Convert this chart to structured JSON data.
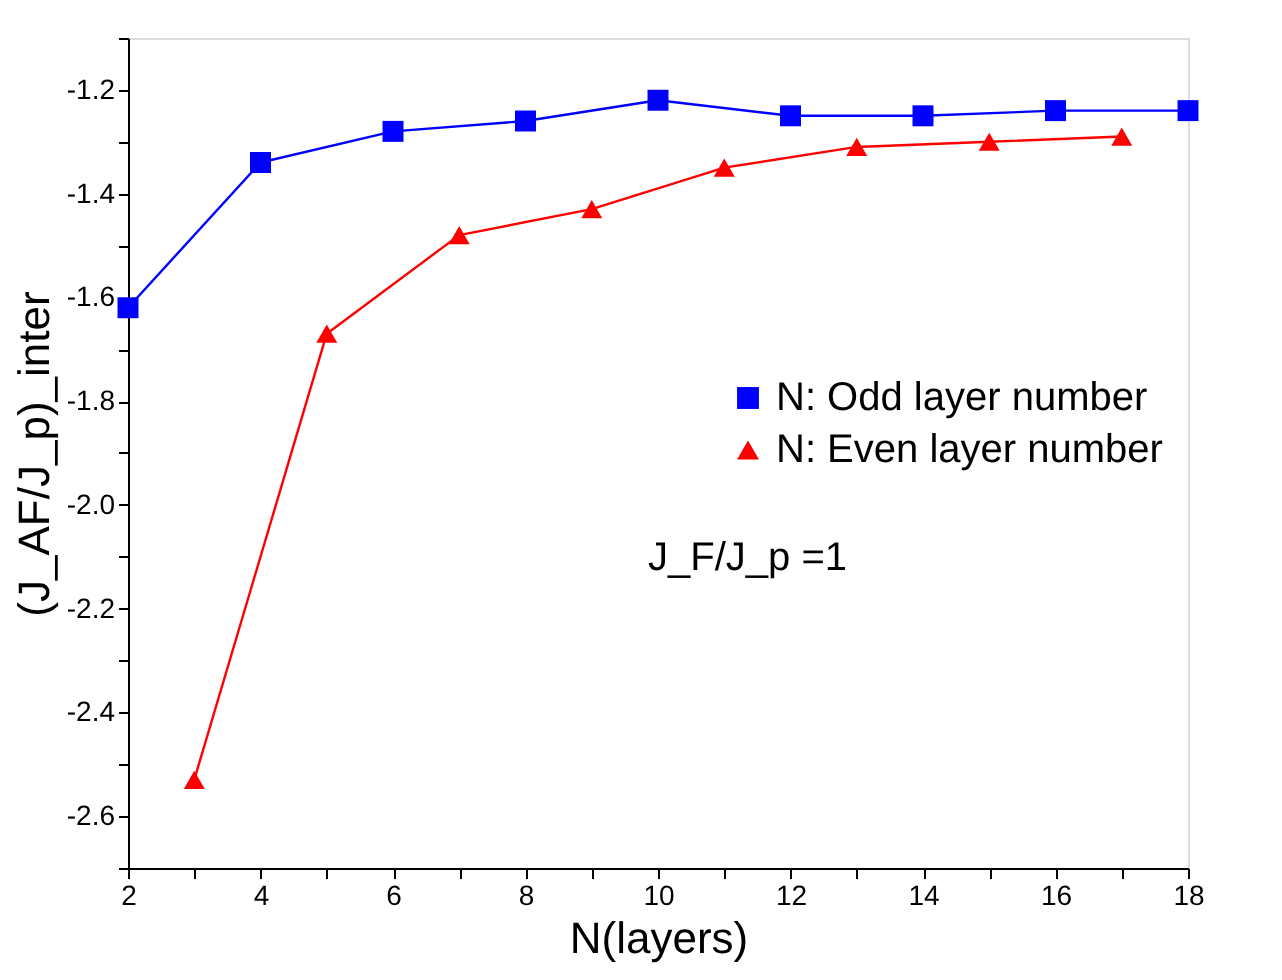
{
  "chart_data": {
    "type": "line",
    "xlabel": "N(layers)",
    "ylabel": "(J_AF/J_p)_inter",
    "xlim": [
      2,
      18
    ],
    "xticks": [
      2,
      {
        "value": 3,
        "label": null
      },
      4,
      {
        "value": 5,
        "label": null
      },
      6,
      {
        "value": 7,
        "label": null
      },
      8,
      {
        "value": 9,
        "label": null
      },
      10,
      {
        "value": 11,
        "label": null
      },
      12,
      {
        "value": 13,
        "label": null
      },
      14,
      {
        "value": 15,
        "label": null
      },
      16,
      {
        "value": 17,
        "label": null
      },
      18
    ],
    "ylim": [
      -2.7,
      -1.1
    ],
    "yticks": [
      {
        "value": -2.7,
        "label": null
      },
      -2.6,
      {
        "value": -2.5,
        "label": null
      },
      -2.4,
      {
        "value": -2.3,
        "label": null
      },
      -2.2,
      {
        "value": -2.1,
        "label": null
      },
      {
        "value": -2,
        "label": "-2.0"
      },
      {
        "value": -1.9,
        "label": null
      },
      -1.8,
      {
        "value": -1.7,
        "label": null
      },
      -1.6,
      {
        "value": -1.5,
        "label": null
      },
      -1.4,
      {
        "value": -1.3,
        "label": null
      },
      -1.2,
      {
        "value": -1.1,
        "label": null
      }
    ],
    "grid": false,
    "legend": "right",
    "series": [
      {
        "name": "N: Odd layer number",
        "color": "#0000ff",
        "marker": "square",
        "x": [
          2,
          4,
          6,
          8,
          10,
          12,
          14,
          16,
          18
        ],
        "values": [
          -1.62,
          -1.34,
          -1.28,
          -1.26,
          -1.22,
          -1.25,
          -1.25,
          -1.24,
          -1.24
        ]
      },
      {
        "name": "N: Even layer number",
        "color": "#ff0000",
        "marker": "triangle",
        "x": [
          3,
          5,
          7,
          9,
          11,
          13,
          15,
          17
        ],
        "values": [
          -2.53,
          -1.67,
          -1.48,
          -1.43,
          -1.35,
          -1.31,
          -1.3,
          -1.29
        ]
      }
    ],
    "annotations": [
      "J_F/J_p =1"
    ]
  }
}
